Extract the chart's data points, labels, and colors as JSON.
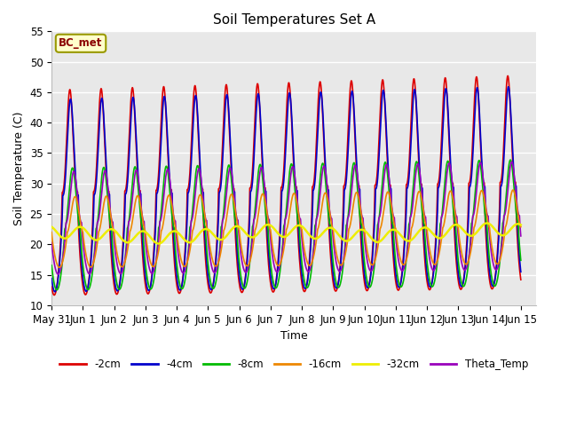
{
  "title": "Soil Temperatures Set A",
  "xlabel": "Time",
  "ylabel": "Soil Temperature (C)",
  "ylim": [
    10,
    55
  ],
  "xlim_start": 0,
  "xlim_end": 15.5,
  "annotation": "BC_met",
  "background_color": "#e8e8e8",
  "grid_color": "white",
  "series": {
    "-2cm": {
      "color": "#dd0000",
      "lw": 1.2
    },
    "-4cm": {
      "color": "#0000cc",
      "lw": 1.2
    },
    "-8cm": {
      "color": "#00bb00",
      "lw": 1.2
    },
    "-16cm": {
      "color": "#ee8800",
      "lw": 1.2
    },
    "-32cm": {
      "color": "#eeee00",
      "lw": 1.8
    },
    "Theta_Temp": {
      "color": "#9900bb",
      "lw": 1.2
    }
  },
  "tick_labels": [
    "May 31",
    "Jun 1",
    "Jun 2",
    "Jun 3",
    "Jun 4",
    "Jun 5",
    "Jun 6",
    "Jun 7",
    "Jun 8",
    "Jun 9",
    "Jun 10",
    "Jun 11",
    "Jun 12",
    "Jun 13",
    "Jun 14",
    "Jun 15"
  ],
  "tick_positions": [
    0,
    1,
    2,
    3,
    4,
    5,
    6,
    7,
    8,
    9,
    10,
    11,
    12,
    13,
    14,
    15
  ],
  "yticks": [
    10,
    15,
    20,
    25,
    30,
    35,
    40,
    45,
    50,
    55
  ]
}
